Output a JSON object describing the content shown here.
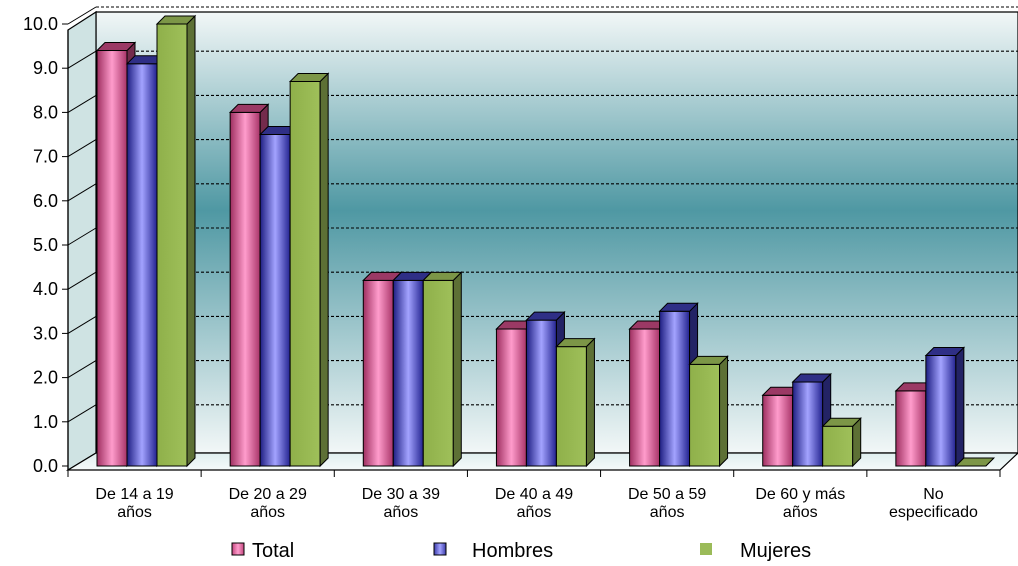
{
  "chart_data": {
    "type": "bar",
    "title": "",
    "xlabel": "",
    "ylabel": "",
    "ylim": [
      0,
      10
    ],
    "yticks": [
      "0.0",
      "1.0",
      "2.0",
      "3.0",
      "4.0",
      "5.0",
      "6.0",
      "7.0",
      "8.0",
      "9.0",
      "10.0"
    ],
    "grid": true,
    "legend_position": "bottom",
    "style": "3d-clustered-column",
    "categories": [
      [
        "De 14 a 19",
        "años"
      ],
      [
        "De 20 a 29",
        "años"
      ],
      [
        "De 30 a 39",
        "años"
      ],
      [
        "De 40 a 49",
        "años"
      ],
      [
        "De 50 a 59",
        "años"
      ],
      [
        "De 60 y más",
        "años"
      ],
      [
        "No",
        "especificado"
      ]
    ],
    "series": [
      {
        "name": "Total",
        "color": "#c2477e",
        "values": [
          9.4,
          8.0,
          4.2,
          3.1,
          3.1,
          1.6,
          1.7
        ]
      },
      {
        "name": "Hombres",
        "color": "#3b3ba8",
        "values": [
          9.1,
          7.5,
          4.2,
          3.3,
          3.5,
          1.9,
          2.5
        ]
      },
      {
        "name": "Mujeres",
        "color": "#9bbb59",
        "values": [
          10.0,
          8.7,
          4.2,
          2.7,
          2.3,
          0.9,
          0.0
        ]
      }
    ]
  }
}
